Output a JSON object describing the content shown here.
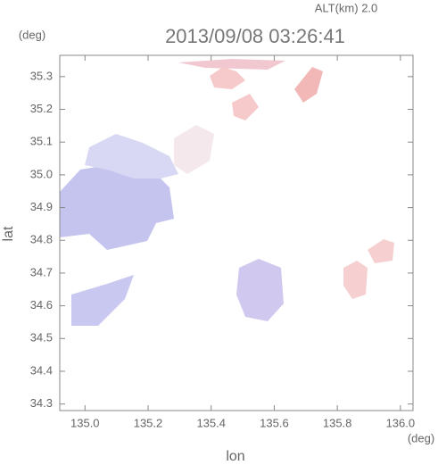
{
  "chart_data": {
    "type": "image",
    "title": "2013/09/08 03:26:41",
    "altitude": "ALT(km) 2.0",
    "x_unit": "(deg)",
    "y_unit": "(deg)",
    "xlabel": "lon",
    "ylabel": "lat",
    "xlim": [
      134.92,
      136.04
    ],
    "ylim": [
      34.28,
      35.365
    ],
    "xticks": [
      {
        "value": 135,
        "label": "135.0"
      },
      135.2,
      135.4,
      135.6,
      135.8,
      {
        "value": 136,
        "label": "136.0"
      }
    ],
    "yticks": [
      34.3,
      34.4,
      34.5,
      34.6,
      34.7,
      34.8,
      34.9,
      {
        "value": 35,
        "label": "35.0"
      },
      35.1,
      35.2,
      35.3
    ]
  }
}
